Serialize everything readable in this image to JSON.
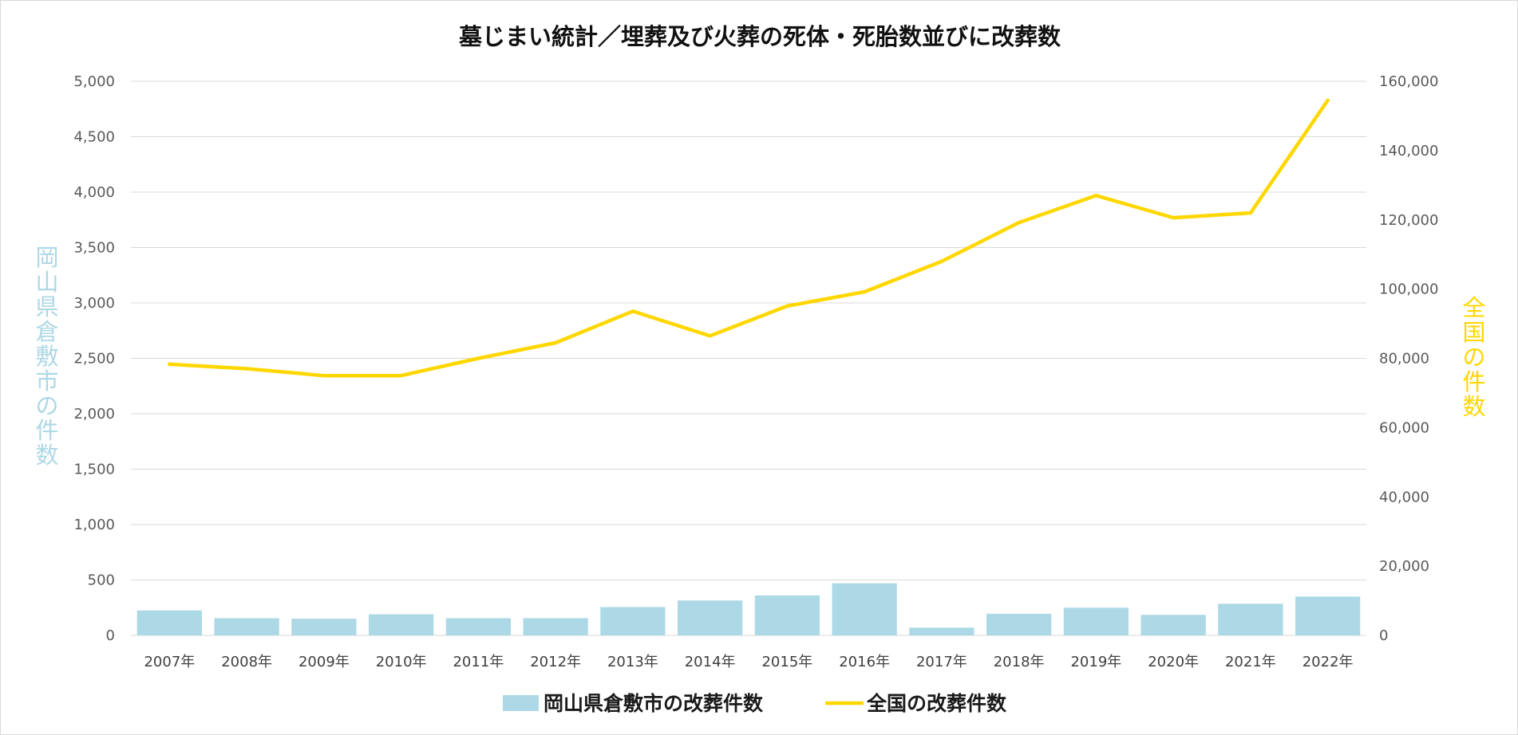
{
  "chart_data": {
    "type": "bar+line",
    "title": "墓じまい統計／埋葬及び火葬の死体・死胎数並びに改葬数",
    "categories": [
      "2007年",
      "2008年",
      "2009年",
      "2010年",
      "2011年",
      "2012年",
      "2013年",
      "2014年",
      "2015年",
      "2016年",
      "2017年",
      "2018年",
      "2019年",
      "2020年",
      "2021年",
      "2022年"
    ],
    "series": [
      {
        "name": "岡山県倉敷市の改葬件数",
        "type": "bar",
        "axis": "left",
        "color": "#add8e6",
        "values": [
          225,
          155,
          150,
          190,
          155,
          155,
          255,
          315,
          360,
          470,
          70,
          195,
          250,
          185,
          285,
          350
        ]
      },
      {
        "name": "全国の改葬件数",
        "type": "line",
        "axis": "right",
        "color": "#ffd700",
        "values": [
          78300,
          77000,
          75000,
          75000,
          80000,
          84500,
          93600,
          86500,
          95100,
          99200,
          108000,
          119200,
          127000,
          120600,
          122000,
          154500
        ]
      }
    ],
    "y_left": {
      "label": "岡山県倉敷市の件数",
      "label_color": "#add8e6",
      "lim": [
        0,
        5000
      ],
      "ticks": [
        "0",
        "500",
        "1,000",
        "1,500",
        "2,000",
        "2,500",
        "3,000",
        "3,500",
        "4,000",
        "4,500",
        "5,000"
      ]
    },
    "y_right": {
      "label": "全国の件数",
      "label_color": "#ffd700",
      "lim": [
        0,
        160000
      ],
      "ticks": [
        "0",
        "20,000",
        "40,000",
        "60,000",
        "80,000",
        "100,000",
        "120,000",
        "140,000",
        "160,000"
      ]
    },
    "grid": true,
    "legend_position": "bottom"
  }
}
